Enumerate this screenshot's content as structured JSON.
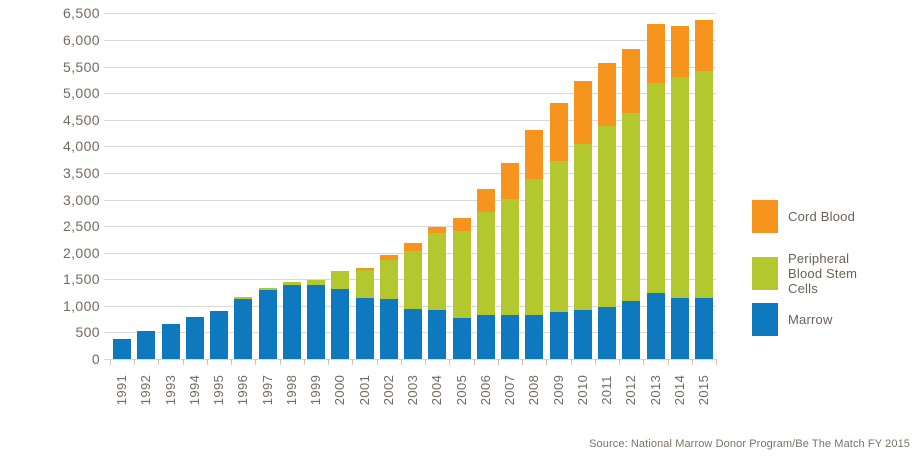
{
  "chart_data": {
    "type": "bar",
    "subtype": "stacked",
    "title": "",
    "categories": [
      "1991",
      "1992",
      "1993",
      "1994",
      "1995",
      "1996",
      "1997",
      "1998",
      "1999",
      "2000",
      "2001",
      "2002",
      "2003",
      "2004",
      "2005",
      "2006",
      "2007",
      "2008",
      "2009",
      "2010",
      "2011",
      "2012",
      "2013",
      "2014",
      "2015"
    ],
    "series": [
      {
        "name": "Marrow",
        "color": "#0e79be",
        "values": [
          375,
          535,
          655,
          790,
          905,
          1120,
          1290,
          1400,
          1390,
          1315,
          1155,
          1125,
          935,
          920,
          770,
          820,
          830,
          825,
          885,
          930,
          975,
          1090,
          1240,
          1150,
          1145
        ]
      },
      {
        "name": "Peripheral Blood Stem Cells",
        "color": "#b2c82e",
        "values": [
          0,
          0,
          0,
          0,
          0,
          40,
          40,
          40,
          100,
          335,
          510,
          735,
          1095,
          1445,
          1630,
          1940,
          2170,
          2570,
          2835,
          3105,
          3410,
          3535,
          3960,
          4160,
          4275
        ]
      },
      {
        "name": "Cord Blood",
        "color": "#f7941d",
        "values": [
          0,
          0,
          0,
          0,
          0,
          0,
          0,
          0,
          0,
          0,
          50,
          90,
          145,
          125,
          245,
          445,
          685,
          915,
          1090,
          1190,
          1180,
          1215,
          1100,
          955,
          960
        ]
      }
    ],
    "ylim": [
      0,
      6500
    ],
    "ytick_step": 500,
    "y_tick_labels": [
      "0",
      "500",
      "1,000",
      "1,500",
      "2,000",
      "2,500",
      "3,000",
      "3,500",
      "4,000",
      "4,500",
      "5,000",
      "5,500",
      "6,000",
      "6,500"
    ],
    "grid": "horizontal",
    "legend": {
      "position": "right",
      "order_top_to_bottom": [
        "Cord Blood",
        "Peripheral Blood Stem Cells",
        "Marrow"
      ]
    },
    "source_note": "Source: National Marrow Donor Program/Be The Match FY 2015"
  },
  "colors": {
    "marrow_blue": "#0e79be",
    "pbsc_green": "#b2c82e",
    "cord_orange": "#f7941d",
    "gridline": "#dbd8d3",
    "axis_text": "#746a60",
    "legend_text": "#6b6156",
    "source_text": "#7c7268",
    "background": "#ffffff"
  }
}
